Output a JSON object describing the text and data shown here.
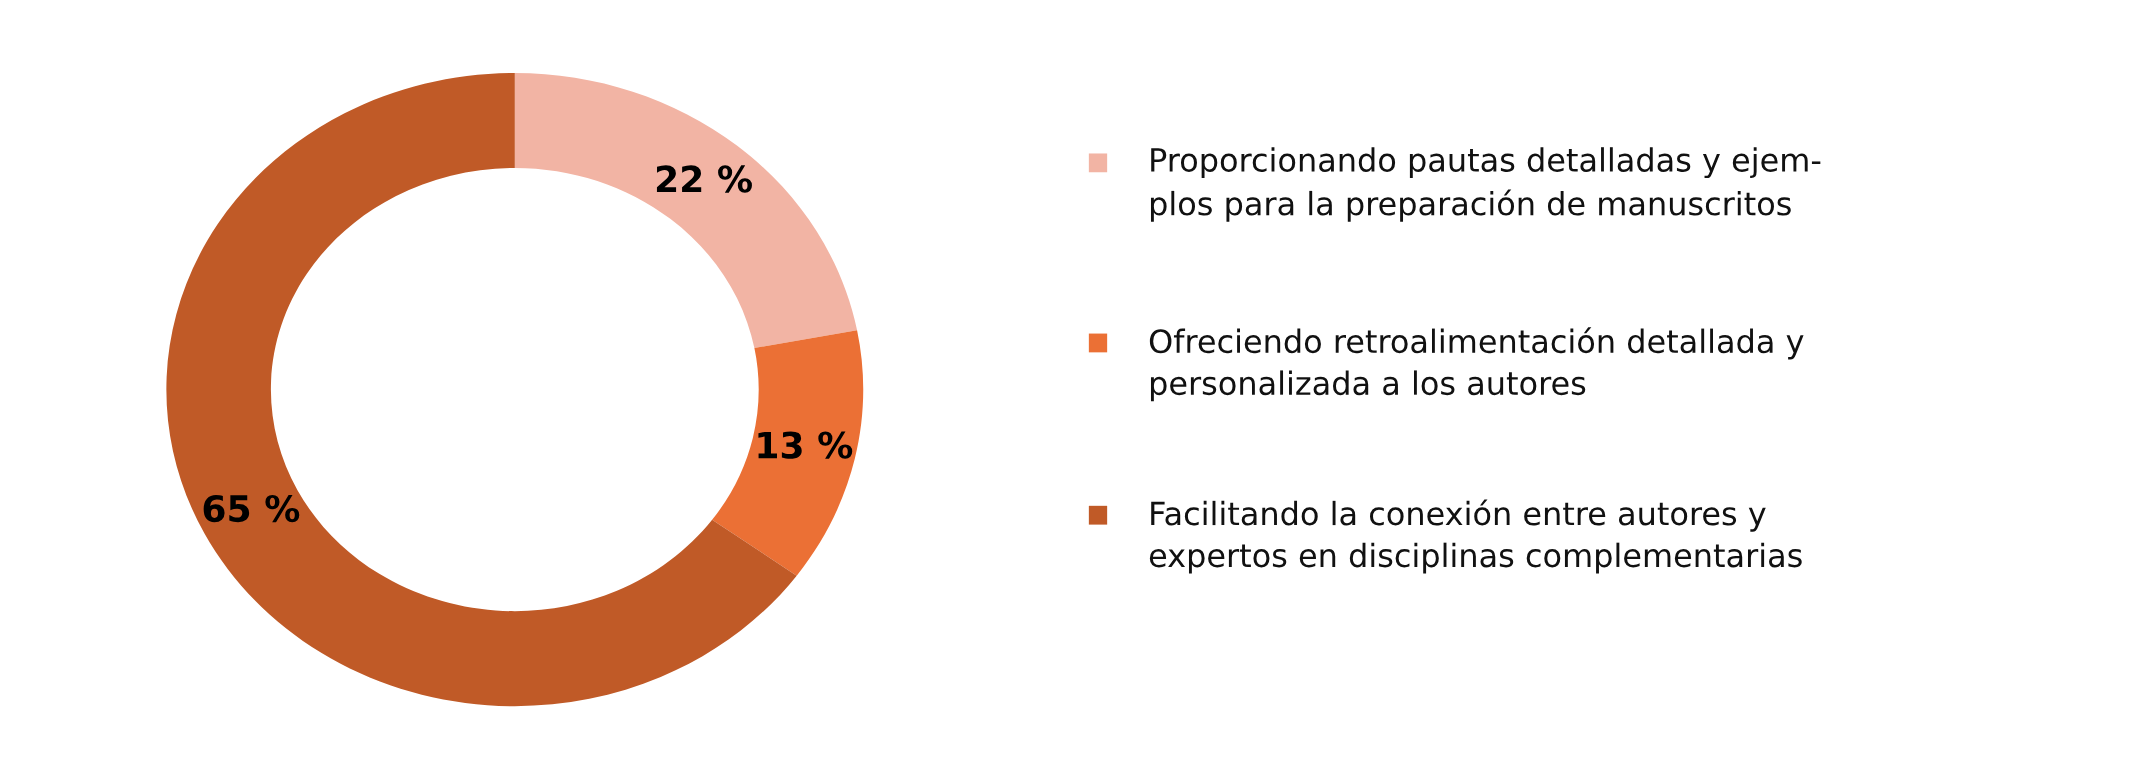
{
  "chart_data": {
    "type": "donut",
    "categories": [
      "Proporcionando pautas detalladas y ejem-\nplos para la preparación de manuscritos",
      "Ofreciendo retroalimentación detallada y\npersonalizada a los autores",
      "Facilitando la conexión entre autores y\nexpertos en disciplinas complementarias"
    ],
    "values": [
      22,
      13,
      65
    ],
    "colors": [
      "#f2b4a4",
      "#eb7035",
      "#c05a27"
    ],
    "value_labels": [
      "22 %",
      "13 %",
      "65 %"
    ],
    "legend": "right"
  }
}
